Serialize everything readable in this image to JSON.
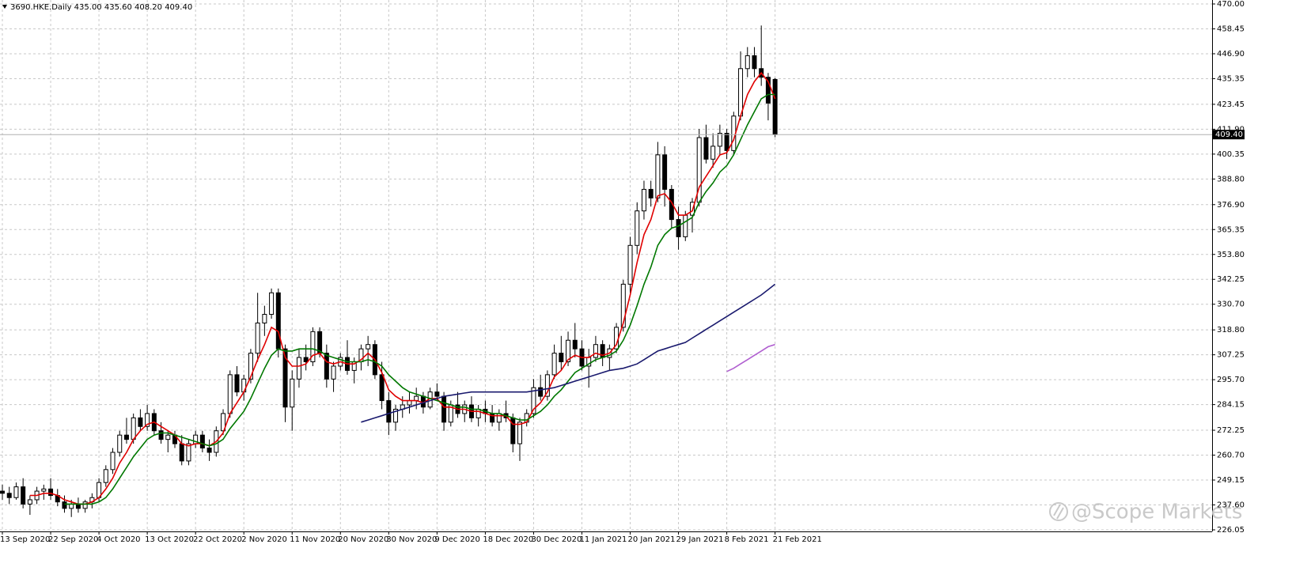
{
  "chart_data": {
    "type": "candlestick",
    "title": "3690.HKE.Daily 435.00 435.60 408.20 409.40",
    "watermark": "@Scope Markets",
    "grid": true,
    "ylim": [
      226.05,
      470.0
    ],
    "yticks": [
      {
        "value": 226.05,
        "label": "226.05"
      },
      {
        "value": 237.6,
        "label": "237.60"
      },
      {
        "value": 249.15,
        "label": "249.15"
      },
      {
        "value": 260.7,
        "label": "260.70"
      },
      {
        "value": 272.25,
        "label": "272.25"
      },
      {
        "value": 284.15,
        "label": "284.15"
      },
      {
        "value": 295.7,
        "label": "295.70"
      },
      {
        "value": 307.25,
        "label": "307.25"
      },
      {
        "value": 318.8,
        "label": "318.80"
      },
      {
        "value": 330.7,
        "label": "330.70"
      },
      {
        "value": 342.25,
        "label": "342.25"
      },
      {
        "value": 353.8,
        "label": "353.80"
      },
      {
        "value": 365.35,
        "label": "365.35"
      },
      {
        "value": 376.9,
        "label": "376.90"
      },
      {
        "value": 388.8,
        "label": "388.80"
      },
      {
        "value": 400.35,
        "label": "400.35"
      },
      {
        "value": 411.9,
        "label": "411.90"
      },
      {
        "value": 423.45,
        "label": "423.45"
      },
      {
        "value": 435.35,
        "label": "435.35"
      },
      {
        "value": 446.9,
        "label": "446.90"
      },
      {
        "value": 458.45,
        "label": "458.45"
      },
      {
        "value": 470.0,
        "label": "470.00"
      }
    ],
    "current_price": {
      "value": 409.4,
      "label": "409.40"
    },
    "categories": [
      "13 Sep 2020",
      null,
      null,
      null,
      null,
      null,
      null,
      "22 Sep 2020",
      null,
      null,
      null,
      null,
      null,
      null,
      "4 Oct 2020",
      null,
      null,
      null,
      null,
      null,
      null,
      "13 Oct 2020",
      null,
      null,
      null,
      null,
      null,
      null,
      "22 Oct 2020",
      null,
      null,
      null,
      null,
      null,
      null,
      "2 Nov 2020",
      null,
      null,
      null,
      null,
      null,
      null,
      "11 Nov 2020",
      null,
      null,
      null,
      null,
      null,
      null,
      "20 Nov 2020",
      null,
      null,
      null,
      null,
      null,
      null,
      "30 Nov 2020",
      null,
      null,
      null,
      null,
      null,
      null,
      "9 Dec 2020",
      null,
      null,
      null,
      null,
      null,
      null,
      "18 Dec 2020",
      null,
      null,
      null,
      null,
      null,
      null,
      "30 Dec 2020",
      null,
      null,
      null,
      null,
      null,
      null,
      "11 Jan 2021",
      null,
      null,
      null,
      null,
      null,
      null,
      "20 Jan 2021",
      null,
      null,
      null,
      null,
      null,
      null,
      "29 Jan 2021",
      null,
      null,
      null,
      null,
      null,
      null,
      "8 Feb 2021",
      null,
      null,
      null,
      null,
      null,
      null,
      "21 Feb 2021"
    ],
    "open": [
      244,
      243,
      241,
      246,
      238,
      240,
      244,
      245,
      242,
      239,
      236,
      238,
      236,
      239,
      241,
      248,
      254,
      262,
      270,
      268,
      278,
      274,
      280,
      272,
      268,
      270,
      266,
      258,
      266,
      270,
      264,
      262,
      272,
      280,
      298,
      290,
      296,
      308,
      322,
      326,
      336,
      310,
      283,
      296,
      306,
      304,
      318,
      308,
      296,
      302,
      306,
      300,
      304,
      310,
      312,
      298,
      286,
      276,
      282,
      284,
      286,
      288,
      283,
      290,
      288,
      276,
      284,
      280,
      284,
      278,
      282,
      280,
      276,
      280,
      278,
      266,
      276,
      280,
      292,
      288,
      298,
      308,
      304,
      314,
      310,
      302,
      306,
      312,
      306,
      310,
      320,
      340,
      358,
      374,
      384,
      380,
      400,
      384,
      370,
      362,
      372,
      378,
      408,
      398,
      404,
      410,
      402,
      418,
      440,
      446,
      440,
      436,
      435.0
    ],
    "high": [
      247,
      246,
      248,
      250,
      242,
      246,
      247,
      250,
      245,
      242,
      240,
      241,
      240,
      243,
      250,
      256,
      264,
      272,
      278,
      280,
      282,
      284,
      282,
      276,
      272,
      272,
      270,
      268,
      272,
      272,
      268,
      274,
      282,
      300,
      302,
      298,
      310,
      336,
      330,
      338,
      338,
      312,
      300,
      310,
      312,
      320,
      320,
      312,
      304,
      308,
      314,
      306,
      312,
      316,
      314,
      304,
      290,
      284,
      288,
      290,
      292,
      290,
      292,
      294,
      290,
      286,
      290,
      286,
      288,
      284,
      286,
      284,
      282,
      286,
      280,
      278,
      282,
      296,
      298,
      300,
      312,
      316,
      318,
      322,
      314,
      310,
      316,
      314,
      312,
      322,
      342,
      362,
      378,
      388,
      388,
      406,
      404,
      386,
      376,
      374,
      380,
      412,
      414,
      410,
      414,
      412,
      420,
      448,
      450,
      450,
      460,
      438,
      435.6
    ],
    "low": [
      240,
      238,
      240,
      236,
      233,
      238,
      240,
      240,
      237,
      234,
      232,
      234,
      234,
      236,
      239,
      246,
      252,
      260,
      266,
      266,
      272,
      272,
      270,
      266,
      262,
      264,
      256,
      256,
      264,
      262,
      258,
      260,
      270,
      278,
      288,
      286,
      294,
      304,
      316,
      324,
      306,
      276,
      272,
      292,
      300,
      302,
      306,
      292,
      290,
      300,
      298,
      294,
      300,
      302,
      296,
      282,
      270,
      272,
      278,
      280,
      282,
      280,
      282,
      286,
      272,
      274,
      278,
      276,
      276,
      274,
      276,
      274,
      272,
      276,
      262,
      258,
      274,
      278,
      286,
      286,
      296,
      300,
      302,
      306,
      300,
      292,
      304,
      302,
      300,
      308,
      318,
      336,
      354,
      370,
      376,
      378,
      376,
      366,
      356,
      360,
      364,
      376,
      396,
      394,
      400,
      398,
      400,
      416,
      436,
      436,
      432,
      416,
      408.2
    ],
    "close": [
      243,
      241,
      246,
      238,
      240,
      244,
      245,
      242,
      239,
      236,
      238,
      236,
      239,
      241,
      248,
      254,
      262,
      270,
      268,
      278,
      274,
      280,
      272,
      268,
      270,
      266,
      258,
      266,
      270,
      264,
      262,
      272,
      280,
      298,
      290,
      296,
      308,
      322,
      326,
      336,
      310,
      283,
      296,
      306,
      304,
      318,
      308,
      296,
      302,
      306,
      300,
      304,
      310,
      312,
      298,
      286,
      276,
      282,
      284,
      286,
      288,
      283,
      290,
      288,
      276,
      284,
      280,
      284,
      278,
      282,
      280,
      276,
      280,
      278,
      266,
      276,
      280,
      292,
      288,
      298,
      308,
      304,
      314,
      310,
      302,
      306,
      312,
      306,
      310,
      320,
      340,
      358,
      374,
      384,
      380,
      400,
      384,
      370,
      362,
      372,
      378,
      408,
      398,
      404,
      410,
      402,
      418,
      440,
      446,
      440,
      436,
      424,
      409.4
    ],
    "up_color": "#ffffff",
    "down_color": "#000000",
    "lines": [
      {
        "color": "#e00000",
        "values": [
          null,
          null,
          null,
          null,
          242,
          242,
          243,
          243,
          242,
          240,
          239,
          238,
          238,
          239,
          241,
          245,
          250,
          257,
          262,
          268,
          272,
          275,
          276,
          274,
          272,
          270,
          266,
          265,
          266,
          266,
          265,
          267,
          271,
          280,
          285,
          290,
          297,
          305,
          312,
          320,
          318,
          306,
          302,
          302,
          303,
          307,
          308,
          304,
          303,
          304,
          303,
          303,
          305,
          308,
          305,
          299,
          291,
          288,
          286,
          286,
          286,
          285,
          287,
          287,
          283,
          283,
          282,
          282,
          281,
          281,
          280,
          279,
          279,
          279,
          275,
          275,
          276,
          282,
          285,
          290,
          297,
          300,
          305,
          307,
          306,
          306,
          308,
          307,
          308,
          312,
          322,
          335,
          350,
          363,
          370,
          381,
          382,
          378,
          372,
          372,
          374,
          385,
          390,
          395,
          400,
          401,
          407,
          418,
          428,
          434,
          438,
          434,
          426
        ]
      },
      {
        "color": "#007800",
        "values": [
          null,
          null,
          null,
          null,
          null,
          null,
          null,
          null,
          null,
          238,
          238,
          238,
          238,
          238,
          239,
          241,
          245,
          250,
          255,
          260,
          264,
          268,
          270,
          271,
          271,
          270,
          269,
          268,
          267,
          266,
          265,
          266,
          268,
          273,
          277,
          281,
          287,
          294,
          301,
          307,
          310,
          309,
          309,
          310,
          310,
          310,
          309,
          307,
          306,
          305,
          304,
          304,
          304,
          305,
          304,
          302,
          298,
          295,
          292,
          290,
          289,
          288,
          287,
          286,
          285,
          284,
          283,
          283,
          282,
          282,
          281,
          280,
          280,
          279,
          278,
          277,
          277,
          279,
          281,
          284,
          288,
          291,
          295,
          299,
          301,
          303,
          305,
          306,
          307,
          309,
          314,
          321,
          330,
          340,
          348,
          358,
          363,
          366,
          367,
          369,
          371,
          378,
          383,
          387,
          392,
          395,
          400,
          407,
          414,
          420,
          426,
          428,
          428
        ]
      },
      {
        "color": "#1a1a6e",
        "values": [
          null,
          null,
          null,
          null,
          null,
          null,
          null,
          null,
          null,
          null,
          null,
          null,
          null,
          null,
          null,
          null,
          null,
          null,
          null,
          null,
          null,
          null,
          null,
          null,
          null,
          null,
          null,
          null,
          null,
          null,
          null,
          null,
          null,
          null,
          null,
          null,
          null,
          null,
          null,
          null,
          null,
          null,
          null,
          null,
          null,
          null,
          null,
          null,
          null,
          null,
          null,
          null,
          276,
          277,
          278,
          279,
          280,
          281,
          282,
          283,
          284,
          285,
          286,
          287,
          288,
          288.5,
          289,
          289.5,
          290,
          290,
          290,
          290,
          290,
          290,
          290,
          290,
          290,
          290.5,
          291,
          291.5,
          292,
          293,
          294,
          295,
          296,
          297,
          298,
          299,
          300,
          300.5,
          301,
          302,
          303,
          305,
          307,
          309,
          310,
          311,
          312,
          313,
          315,
          317,
          319,
          321,
          323,
          325,
          327,
          329,
          331,
          333,
          335,
          337.5,
          340
        ]
      },
      {
        "color": "#b05fd0",
        "values": [
          null,
          null,
          null,
          null,
          null,
          null,
          null,
          null,
          null,
          null,
          null,
          null,
          null,
          null,
          null,
          null,
          null,
          null,
          null,
          null,
          null,
          null,
          null,
          null,
          null,
          null,
          null,
          null,
          null,
          null,
          null,
          null,
          null,
          null,
          null,
          null,
          null,
          null,
          null,
          null,
          null,
          null,
          null,
          null,
          null,
          null,
          null,
          null,
          null,
          null,
          null,
          null,
          null,
          null,
          null,
          null,
          null,
          null,
          null,
          null,
          null,
          null,
          null,
          null,
          null,
          null,
          null,
          null,
          null,
          null,
          null,
          null,
          null,
          null,
          null,
          null,
          null,
          null,
          null,
          null,
          null,
          null,
          null,
          null,
          null,
          null,
          null,
          null,
          null,
          null,
          null,
          null,
          null,
          null,
          null,
          null,
          null,
          null,
          null,
          null,
          null,
          null,
          null,
          null,
          null,
          299.5,
          301,
          303,
          305,
          307,
          309,
          311,
          312
        ]
      }
    ]
  }
}
